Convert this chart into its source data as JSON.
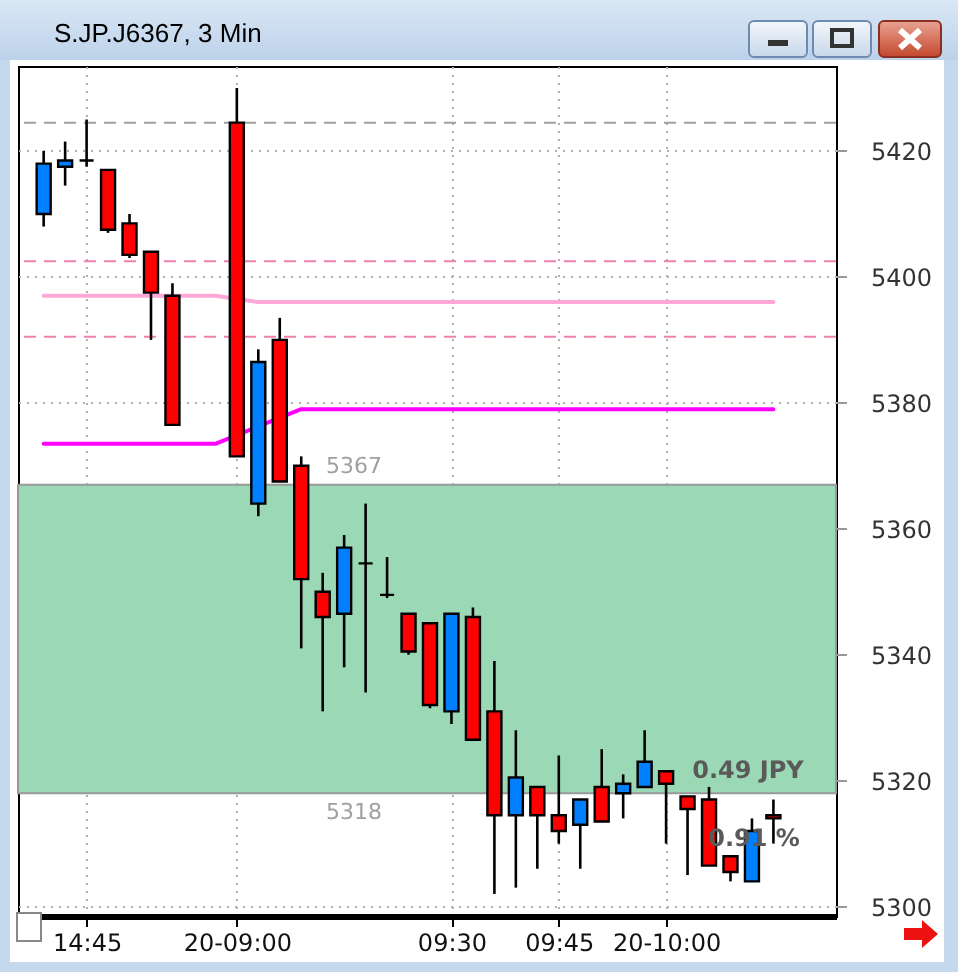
{
  "chart_data": {
    "type": "candlestick",
    "title": "S.JP.J6367, 3 Min",
    "categories": [
      null,
      null,
      "14:45",
      null,
      null,
      null,
      null,
      null,
      null,
      "20-09:00",
      null,
      null,
      null,
      null,
      null,
      null,
      null,
      null,
      null,
      "09:30",
      null,
      null,
      null,
      null,
      "09:45",
      null,
      null,
      null,
      null,
      "20-10:00",
      null,
      null,
      null,
      null,
      null
    ],
    "series": [
      {
        "type": "line",
        "color": "#ff00ff",
        "values": [
          5373.5,
          5373.5,
          5373.5,
          5373.5,
          5373.5,
          5373.5,
          5373.5,
          5373.5,
          5373.5,
          null,
          null,
          null,
          5379,
          5379,
          5379,
          5379,
          5379,
          5379,
          5379,
          5379,
          5379,
          5379,
          5379,
          5379,
          5379,
          5379,
          5379,
          5379,
          5379,
          5379,
          5379,
          5379,
          5379,
          5379,
          5379
        ]
      },
      {
        "type": "line",
        "color": "#ffa8d8",
        "values": [
          5397,
          5397,
          5397,
          5397,
          5397,
          5397,
          null,
          5397,
          5397,
          null,
          5396,
          5396,
          5396,
          5396,
          5396,
          5396,
          5396,
          5396,
          5396,
          5396,
          5396,
          5396,
          5396,
          5396,
          5396,
          5396,
          5396,
          5396,
          5396,
          5396,
          5396,
          5396,
          5396,
          5396,
          5396
        ]
      },
      {
        "type": "candlestick",
        "colors": [
          "#0080ff",
          "#0080ff",
          "#000000",
          "#ff0000",
          "#ff0000",
          "#ff0000",
          "#ff0000",
          null,
          null,
          "#ff0000",
          "#0080ff",
          "#ff0000",
          "#ff0000",
          "#ff0000",
          "#0080ff",
          "#000000",
          "#000000",
          "#ff0000",
          "#ff0000",
          "#0080ff",
          "#ff0000",
          "#ff0000",
          "#0080ff",
          "#ff0000",
          "#ff0000",
          "#0080ff",
          "#ff0000",
          "#0080ff",
          "#0080ff",
          "#ff0000",
          "#ff0000",
          "#ff0000",
          "#ff0000",
          "#0080ff",
          "#ff0000"
        ],
        "ohlc": [
          [
            5410,
            5420,
            5408,
            5418
          ],
          [
            5417.5,
            5421.5,
            5414.5,
            5418.5
          ],
          [
            5418.5,
            5425,
            5417.5,
            5418.5
          ],
          [
            5417,
            5417,
            5407,
            5407.5
          ],
          [
            5408.5,
            5410,
            5403,
            5403.5
          ],
          [
            5404,
            5404,
            5390,
            5397.5
          ],
          [
            5397,
            5399,
            5376.5,
            5376.5
          ],
          null,
          null,
          [
            5424.5,
            5430,
            5371.5,
            5371.5
          ],
          [
            5364,
            5388.5,
            5362,
            5386.5
          ],
          [
            5390,
            5393.5,
            5367.5,
            5367.5
          ],
          [
            5370,
            5371.5,
            5341,
            5352
          ],
          [
            5350,
            5353,
            5331,
            5346
          ],
          [
            5346.5,
            5359,
            5338,
            5357
          ],
          [
            5354.5,
            5364,
            5334,
            5354.5
          ],
          [
            5349.5,
            5355.5,
            5349,
            5349.5
          ],
          [
            5346.5,
            5346.5,
            5340,
            5340.5
          ],
          [
            5345,
            5345,
            5331.5,
            5332
          ],
          [
            5331,
            5346.5,
            5329,
            5346.5
          ],
          [
            5346,
            5347.5,
            5326.5,
            5326.5
          ],
          [
            5331,
            5339,
            5302,
            5314.5
          ],
          [
            5314.5,
            5328,
            5303,
            5320.5
          ],
          [
            5319,
            5319,
            5306,
            5314.5
          ],
          [
            5314.5,
            5324,
            5310,
            5312
          ],
          [
            5313,
            5317,
            5306,
            5317
          ],
          [
            5319,
            5325,
            5313.5,
            5313.5
          ],
          [
            5318,
            5321,
            5314,
            5319.5
          ],
          [
            5319,
            5328,
            5319,
            5323
          ],
          [
            5321.5,
            5321.5,
            5310,
            5319.5
          ],
          [
            5317.5,
            5317.5,
            5305,
            5315.5
          ],
          [
            5317,
            5319,
            5306.5,
            5306.5
          ],
          [
            5308,
            5308,
            5304,
            5305.5
          ],
          [
            5304,
            5314,
            5304,
            5312
          ],
          [
            5314.5,
            5317,
            5310,
            5314
          ]
        ]
      }
    ],
    "ylim": [
      5298.5,
      5433.5
    ],
    "yticks": [
      5300,
      5320,
      5340,
      5360,
      5380,
      5400,
      5420
    ],
    "grid": true,
    "ref_lines": [
      {
        "axis": "y",
        "value": 5424.5,
        "color": "#a0a0a0",
        "line_style": "dashed"
      },
      {
        "axis": "y",
        "value": 5402.5,
        "color": "#f080b0",
        "line_style": "dashed"
      },
      {
        "axis": "y",
        "value": 5390.5,
        "color": "#f080b0",
        "line_style": "dashed"
      }
    ],
    "bands": [
      {
        "axis": "y",
        "from": 5318,
        "to": 5367,
        "color": "#9ad8b6"
      }
    ],
    "annotations": [
      {
        "text": "5367",
        "y": 5367
      },
      {
        "text": "5318",
        "y": 5318
      },
      "0.49 JPY",
      "0.91 %"
    ]
  }
}
